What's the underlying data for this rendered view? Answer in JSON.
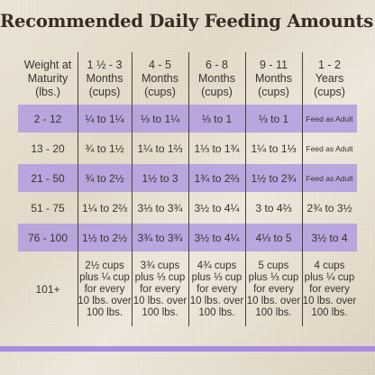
{
  "title": "Recommended Daily Feeding Amounts:",
  "table": {
    "headers": [
      "Weight at\nMaturity\n(lbs.)",
      "1 ½ - 3\nMonths\n(cups)",
      "4 - 5\nMonths\n(cups)",
      "6 - 8\nMonths\n(cups)",
      "9 - 11\nMonths\n(cups)",
      "1 - 2\nYears\n(cups)"
    ],
    "rows": [
      [
        "2 - 12",
        "¼ to 1¼",
        "⅓ to 1¼",
        "⅓ to 1",
        "⅓ to 1",
        "Feed as Adult"
      ],
      [
        "13 - 20",
        "¾ to 1½",
        "1¼ to 1⅔",
        "1⅓ to 1¾",
        "1¼ to 1⅓",
        "Feed as Adult"
      ],
      [
        "21 - 50",
        "¾ to 2½",
        "1½ to 3",
        "1¾ to 2⅔",
        "1½ to 2¾",
        "Feed as Adult"
      ],
      [
        "51 - 75",
        "1¼ to 2⅔",
        "3⅓ to 3¾",
        "3½ to 4¼",
        "3 to 4⅔",
        "2¾ to 3½"
      ],
      [
        "76 - 100",
        "1½ to 2½",
        "3¾ to 3¾",
        "3½ to 4¼",
        "4⅓ to 5",
        "3½ to 4"
      ],
      [
        "101+",
        "2½ cups\nplus ¼ cup\nfor every\n10 lbs. over\n100 lbs.",
        "3¾ cups\nplus ⅓ cup\nfor every\n10 lbs. over\n100 lbs.",
        "4¾ cups\nplus ⅓ cup\nfor every\n10 lbs. over\n100 lbs.",
        "5 cups\nplus ⅓ cup\nfor every\n10 lbs. over\n100 lbs.",
        "4 cups\nplus ¼ cup\nfor every\n10 lbs. over\n100 lbs."
      ]
    ]
  },
  "colors": {
    "band": "#b098e0",
    "title": "#3a2c24",
    "text": "#3a322e",
    "accent_bar": "#a98be2"
  }
}
